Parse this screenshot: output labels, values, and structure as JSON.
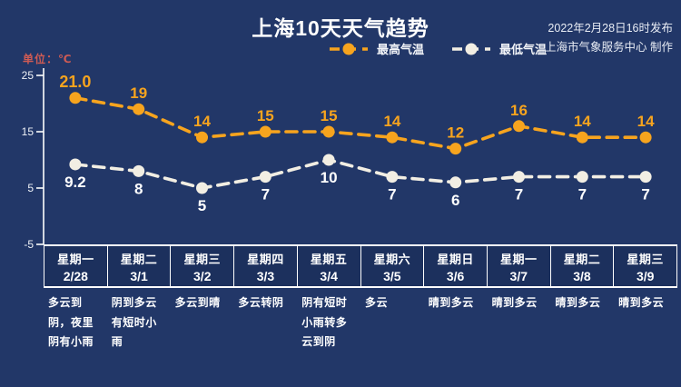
{
  "page": {
    "title": "上海10天天气趋势",
    "publish_line1": "2022年2月28日16时发布",
    "publish_line2": "上海市气象服务中心 制作",
    "unit_label": "单位：℃"
  },
  "colors": {
    "background": "#223768",
    "axis": "#fdfdfd",
    "max_series": "#f7a41e",
    "min_series": "#f2eee3",
    "max_label": "#f7a41e",
    "min_label": "#ffffff",
    "unit_label": "#cf5b54",
    "text": "#ffffff"
  },
  "chart_data": {
    "type": "line",
    "title": "上海10天天气趋势",
    "ylabel": "单位：℃",
    "ylim": [
      -5,
      25
    ],
    "yticks": [
      25,
      15,
      5,
      -5
    ],
    "grid": "off",
    "legend_position": "top-center",
    "series": [
      {
        "name": "最高气温",
        "color": "#f7a41e",
        "label_color": "#f7a41e",
        "label_position": "above",
        "values": [
          21.0,
          19,
          14,
          15,
          15,
          14,
          12,
          16,
          14,
          14
        ],
        "labels": [
          "21.0",
          "19",
          "14",
          "15",
          "15",
          "14",
          "12",
          "16",
          "14",
          "14"
        ]
      },
      {
        "name": "最低气温",
        "color": "#f2eee3",
        "label_color": "#ffffff",
        "label_position": "below",
        "values": [
          9.2,
          8,
          5,
          7,
          10,
          7,
          6,
          7,
          7,
          7
        ],
        "labels": [
          "9.2",
          "8",
          "5",
          "7",
          "10",
          "7",
          "6",
          "7",
          "7",
          "7"
        ]
      }
    ],
    "categories": [
      {
        "weekday": "星期一",
        "date": "2/28",
        "weather": "多云到阴，夜里阴有小雨"
      },
      {
        "weekday": "星期二",
        "date": "3/1",
        "weather": "阴到多云有短时小雨"
      },
      {
        "weekday": "星期三",
        "date": "3/2",
        "weather": "多云到晴"
      },
      {
        "weekday": "星期四",
        "date": "3/3",
        "weather": "多云转阴"
      },
      {
        "weekday": "星期五",
        "date": "3/4",
        "weather": "阴有短时小雨转多云到阴"
      },
      {
        "weekday": "星期六",
        "date": "3/5",
        "weather": "多云"
      },
      {
        "weekday": "星期日",
        "date": "3/6",
        "weather": "晴到多云"
      },
      {
        "weekday": "星期一",
        "date": "3/7",
        "weather": "晴到多云"
      },
      {
        "weekday": "星期二",
        "date": "3/8",
        "weather": "晴到多云"
      },
      {
        "weekday": "星期三",
        "date": "3/9",
        "weather": "晴到多云"
      }
    ]
  }
}
